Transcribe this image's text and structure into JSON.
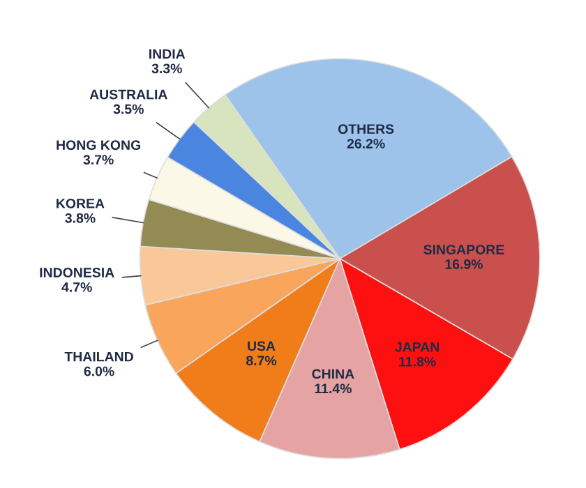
{
  "chart_data": {
    "type": "pie",
    "categories": [
      "OTHERS",
      "SINGAPORE",
      "JAPAN",
      "CHINA",
      "USA",
      "THAILAND",
      "INDONESIA",
      "KOREA",
      "HONG KONG",
      "AUSTRALIA",
      "INDIA"
    ],
    "values": [
      26.2,
      16.9,
      11.8,
      11.4,
      8.7,
      6.0,
      4.7,
      3.8,
      3.7,
      3.5,
      3.3
    ],
    "value_labels": [
      "26.2%",
      "16.9%",
      "11.8%",
      "11.4%",
      "8.7%",
      "6.0%",
      "4.7%",
      "3.8%",
      "3.7%",
      "3.5%",
      "3.3%"
    ],
    "colors": [
      "#9dc3ea",
      "#c9504d",
      "#ff1010",
      "#e6a3a3",
      "#f07d1a",
      "#f9a55c",
      "#fac898",
      "#948a54",
      "#fbf8e8",
      "#4a86e0",
      "#d7e4bd"
    ],
    "legend": false
  }
}
